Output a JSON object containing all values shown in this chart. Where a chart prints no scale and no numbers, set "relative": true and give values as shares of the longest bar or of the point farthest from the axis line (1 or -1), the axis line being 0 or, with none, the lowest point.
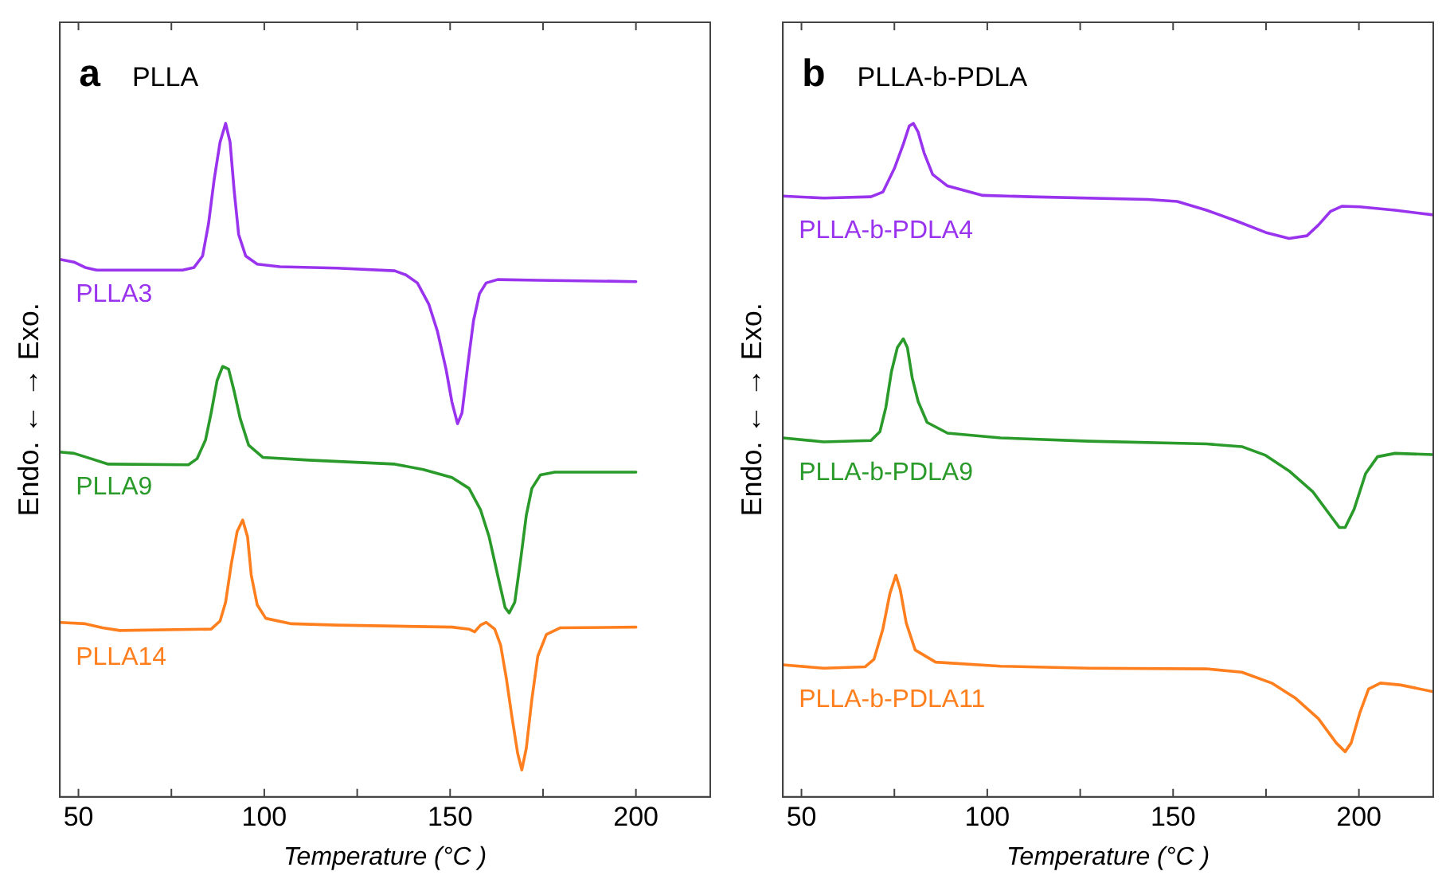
{
  "chart_data": [
    {
      "type": "line",
      "title": "PLLA",
      "annotations": [
        "a"
      ],
      "xlabel": "Temperature (°C )",
      "ylabel": "Endo. ← → Exo.",
      "relative": true,
      "xlim": [
        45,
        220
      ],
      "xticks": [
        50,
        {
          "value": 75,
          "label": null
        },
        100,
        {
          "value": 125,
          "label": null
        },
        150,
        {
          "value": 175,
          "label": null
        },
        200
      ],
      "tick_labels": "x",
      "legend": false,
      "grid": false,
      "series": [
        {
          "name": "PLLA3",
          "color": "#9933ee",
          "x": [
            45,
            48.8,
            51.8,
            54.9,
            65.7,
            78,
            81.1,
            83.4,
            85,
            86.5,
            88.1,
            89.6,
            90.8,
            91.9,
            93.1,
            95,
            98.1,
            104.2,
            119.6,
            135.1,
            138.1,
            141.2,
            144.3,
            146.6,
            148.9,
            150.5,
            152,
            153.2,
            154.8,
            156.3,
            157.9,
            159.7,
            162.8,
            173.6,
            200
          ],
          "values": [
            0.798,
            0.794,
            0.786,
            0.782,
            0.782,
            0.782,
            0.786,
            0.803,
            0.851,
            0.916,
            0.972,
            1,
            0.972,
            0.9,
            0.835,
            0.803,
            0.791,
            0.787,
            0.785,
            0.781,
            0.775,
            0.763,
            0.731,
            0.691,
            0.635,
            0.586,
            0.554,
            0.57,
            0.643,
            0.707,
            0.747,
            0.763,
            0.768,
            0.767,
            0.765
          ]
        },
        {
          "name": "PLLA9",
          "color": "#2a9a2a",
          "x": [
            45,
            48.8,
            53.4,
            58,
            79.6,
            81.9,
            84.2,
            85.7,
            87.3,
            88.8,
            90.4,
            91.9,
            93.5,
            95.8,
            99.6,
            111.9,
            135.1,
            142.8,
            150.5,
            155.1,
            158.2,
            160.5,
            162.8,
            164.8,
            165.9,
            167.4,
            169,
            170.5,
            172,
            174.3,
            178.2,
            200
          ],
          "values": [
            0.512,
            0.51,
            0.502,
            0.494,
            0.493,
            0.502,
            0.53,
            0.57,
            0.618,
            0.639,
            0.635,
            0.602,
            0.562,
            0.522,
            0.504,
            0.5,
            0.494,
            0.486,
            0.474,
            0.458,
            0.426,
            0.386,
            0.329,
            0.281,
            0.273,
            0.289,
            0.353,
            0.418,
            0.458,
            0.478,
            0.482,
            0.482
          ]
        },
        {
          "name": "PLLA14",
          "color": "#ff7f1e",
          "x": [
            45,
            51.8,
            56.5,
            61.1,
            85.7,
            88.1,
            89.6,
            91.1,
            92.7,
            94.2,
            95.5,
            96.5,
            98.1,
            100.4,
            107.3,
            119.6,
            150.5,
            155.1,
            156.6,
            158.2,
            159.7,
            162,
            163.6,
            165.1,
            166.6,
            168.2,
            169.3,
            170.5,
            172,
            173.6,
            175.9,
            179.7,
            200
          ],
          "values": [
            0.259,
            0.257,
            0.251,
            0.247,
            0.249,
            0.261,
            0.289,
            0.345,
            0.394,
            0.411,
            0.386,
            0.329,
            0.285,
            0.265,
            0.257,
            0.255,
            0.252,
            0.249,
            0.245,
            0.255,
            0.259,
            0.249,
            0.225,
            0.177,
            0.12,
            0.064,
            0.04,
            0.072,
            0.145,
            0.209,
            0.241,
            0.251,
            0.252
          ]
        }
      ]
    },
    {
      "type": "line",
      "title": "PLLA-b-PDLA",
      "annotations": [
        "b"
      ],
      "xlabel": "Temperature (°C )",
      "ylabel": "Endo. ← → Exo.",
      "relative": true,
      "xlim": [
        45,
        220
      ],
      "xticks": [
        50,
        {
          "value": 75,
          "label": null
        },
        100,
        {
          "value": 125,
          "label": null
        },
        150,
        {
          "value": 175,
          "label": null
        },
        200
      ],
      "tick_labels": "x",
      "legend": false,
      "grid": false,
      "series": [
        {
          "name": "PLLA-b-PDLA4",
          "color": "#9933ee",
          "x": [
            45,
            56,
            68.7,
            71.9,
            75,
            77.4,
            79,
            80.1,
            81.4,
            83,
            85.3,
            89.3,
            98.8,
            111.5,
            143.2,
            151.1,
            159,
            167,
            174.9,
            181.2,
            186,
            189.1,
            192.3,
            195.5,
            200.2,
            209.7,
            220
          ],
          "values": [
            0.892,
            0.889,
            0.891,
            0.898,
            0.933,
            0.969,
            0.996,
            1,
            0.987,
            0.956,
            0.924,
            0.907,
            0.893,
            0.891,
            0.887,
            0.884,
            0.871,
            0.855,
            0.838,
            0.829,
            0.833,
            0.849,
            0.869,
            0.877,
            0.876,
            0.871,
            0.864
          ]
        },
        {
          "name": "PLLA-b-PDLA9",
          "color": "#2a9a2a",
          "x": [
            45,
            56,
            68.7,
            71.1,
            72.7,
            74.2,
            75.8,
            77.4,
            78.5,
            79.8,
            81.4,
            83.8,
            89.3,
            103.6,
            127.3,
            159,
            168.5,
            174.9,
            181.2,
            187.6,
            192.3,
            194.7,
            196.3,
            198.7,
            201.8,
            205,
            209.7,
            220
          ],
          "values": [
            0.533,
            0.527,
            0.529,
            0.542,
            0.578,
            0.631,
            0.667,
            0.68,
            0.667,
            0.622,
            0.587,
            0.556,
            0.54,
            0.533,
            0.528,
            0.524,
            0.52,
            0.507,
            0.484,
            0.453,
            0.418,
            0.4,
            0.4,
            0.427,
            0.48,
            0.505,
            0.51,
            0.508
          ]
        },
        {
          "name": "PLLA-b-PDLA11",
          "color": "#ff7f1e",
          "x": [
            45,
            56,
            67.1,
            69.5,
            71.9,
            73.8,
            75.4,
            76.6,
            78.2,
            80.6,
            86.1,
            103.6,
            127.3,
            159,
            168.5,
            176.5,
            182.8,
            189.1,
            193.9,
            196.3,
            197.9,
            200.2,
            202.6,
            205.8,
            211.3,
            220
          ],
          "values": [
            0.196,
            0.191,
            0.193,
            0.204,
            0.249,
            0.302,
            0.329,
            0.307,
            0.258,
            0.218,
            0.2,
            0.194,
            0.191,
            0.19,
            0.185,
            0.169,
            0.147,
            0.116,
            0.08,
            0.067,
            0.08,
            0.124,
            0.16,
            0.169,
            0.166,
            0.156
          ]
        }
      ]
    }
  ]
}
